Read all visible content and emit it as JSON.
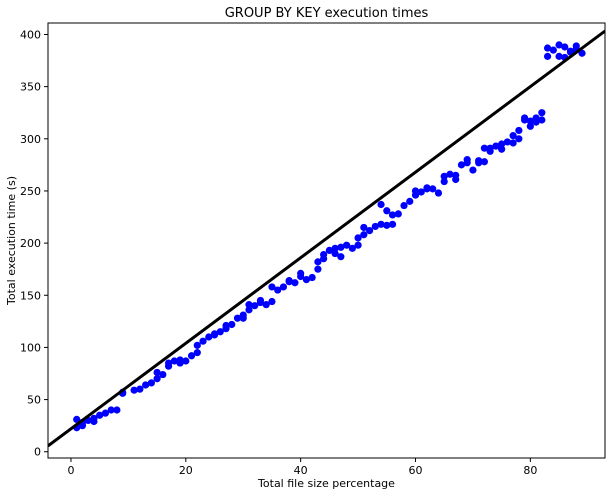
{
  "chart_data": {
    "type": "scatter",
    "title": "GROUP BY KEY execution times",
    "xlabel": "Total file size percentage",
    "ylabel": "Total execution time (s)",
    "xlim": [
      -4,
      93
    ],
    "ylim": [
      -6,
      411
    ],
    "xticks": [
      0,
      20,
      40,
      60,
      80
    ],
    "yticks": [
      0,
      50,
      100,
      150,
      200,
      250,
      300,
      350,
      400
    ],
    "grid": false,
    "legend": "none",
    "point_color": "#0000ff",
    "line_color": "#000000",
    "fit_line": {
      "slope": 4.1,
      "intercept": 22
    },
    "points": [
      [
        1,
        31
      ],
      [
        1,
        23
      ],
      [
        2,
        25
      ],
      [
        2,
        28
      ],
      [
        3,
        30
      ],
      [
        4,
        32
      ],
      [
        4,
        29
      ],
      [
        5,
        35
      ],
      [
        6,
        37
      ],
      [
        7,
        40
      ],
      [
        8,
        40
      ],
      [
        9,
        57
      ],
      [
        9,
        56
      ],
      [
        11,
        59
      ],
      [
        12,
        60
      ],
      [
        13,
        64
      ],
      [
        14,
        66
      ],
      [
        15,
        70
      ],
      [
        15,
        76
      ],
      [
        16,
        74
      ],
      [
        17,
        82
      ],
      [
        17,
        85
      ],
      [
        18,
        87
      ],
      [
        19,
        88
      ],
      [
        19,
        85
      ],
      [
        20,
        87
      ],
      [
        21,
        92
      ],
      [
        22,
        95
      ],
      [
        22,
        102
      ],
      [
        23,
        106
      ],
      [
        24,
        110
      ],
      [
        25,
        113
      ],
      [
        25,
        112
      ],
      [
        26,
        115
      ],
      [
        27,
        118
      ],
      [
        27,
        121
      ],
      [
        28,
        122
      ],
      [
        29,
        128
      ],
      [
        30,
        131
      ],
      [
        30,
        128
      ],
      [
        31,
        136
      ],
      [
        31,
        141
      ],
      [
        32,
        140
      ],
      [
        33,
        143
      ],
      [
        33,
        145
      ],
      [
        34,
        141
      ],
      [
        35,
        144
      ],
      [
        35,
        158
      ],
      [
        36,
        155
      ],
      [
        37,
        158
      ],
      [
        38,
        163
      ],
      [
        38,
        164
      ],
      [
        39,
        162
      ],
      [
        40,
        168
      ],
      [
        40,
        171
      ],
      [
        41,
        165
      ],
      [
        42,
        167
      ],
      [
        43,
        175
      ],
      [
        43,
        182
      ],
      [
        44,
        189
      ],
      [
        44,
        185
      ],
      [
        45,
        193
      ],
      [
        46,
        195
      ],
      [
        46,
        190
      ],
      [
        47,
        187
      ],
      [
        47,
        196
      ],
      [
        48,
        198
      ],
      [
        49,
        195
      ],
      [
        50,
        198
      ],
      [
        50,
        205
      ],
      [
        51,
        208
      ],
      [
        51,
        215
      ],
      [
        52,
        212
      ],
      [
        53,
        216
      ],
      [
        54,
        218
      ],
      [
        54,
        237
      ],
      [
        55,
        217
      ],
      [
        55,
        231
      ],
      [
        56,
        218
      ],
      [
        56,
        227
      ],
      [
        57,
        228
      ],
      [
        58,
        236
      ],
      [
        59,
        240
      ],
      [
        60,
        246
      ],
      [
        60,
        250
      ],
      [
        61,
        249
      ],
      [
        62,
        252
      ],
      [
        62,
        253
      ],
      [
        63,
        252
      ],
      [
        64,
        248
      ],
      [
        65,
        259
      ],
      [
        65,
        264
      ],
      [
        66,
        266
      ],
      [
        67,
        265
      ],
      [
        67,
        261
      ],
      [
        68,
        275
      ],
      [
        69,
        280
      ],
      [
        69,
        277
      ],
      [
        70,
        270
      ],
      [
        71,
        277
      ],
      [
        71,
        279
      ],
      [
        72,
        291
      ],
      [
        72,
        278
      ],
      [
        73,
        291
      ],
      [
        73,
        288
      ],
      [
        74,
        293
      ],
      [
        75,
        295
      ],
      [
        75,
        290
      ],
      [
        76,
        297
      ],
      [
        77,
        303
      ],
      [
        77,
        296
      ],
      [
        78,
        308
      ],
      [
        78,
        300
      ],
      [
        79,
        320
      ],
      [
        79,
        318
      ],
      [
        80,
        312
      ],
      [
        80,
        317
      ],
      [
        81,
        316
      ],
      [
        81,
        320
      ],
      [
        82,
        325
      ],
      [
        82,
        318
      ],
      [
        83,
        379
      ],
      [
        83,
        387
      ],
      [
        84,
        385
      ],
      [
        85,
        379
      ],
      [
        85,
        390
      ],
      [
        86,
        388
      ],
      [
        86,
        378
      ],
      [
        87,
        383
      ],
      [
        87,
        384
      ],
      [
        88,
        389
      ],
      [
        88,
        386
      ],
      [
        89,
        382
      ]
    ]
  }
}
